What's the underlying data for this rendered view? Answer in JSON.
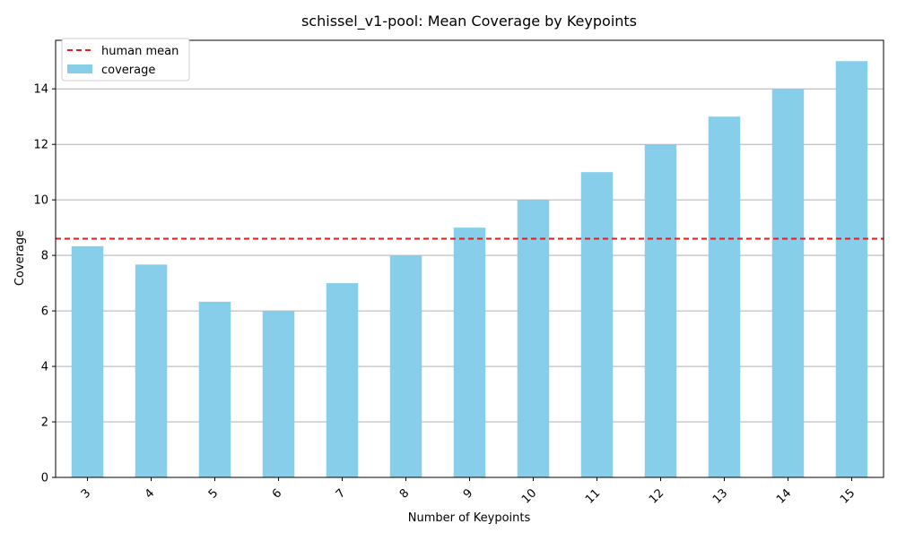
{
  "chart_data": {
    "type": "bar",
    "title": "schissel_v1-pool: Mean Coverage by Keypoints",
    "xlabel": "Number of Keypoints",
    "ylabel": "Coverage",
    "categories": [
      "3",
      "4",
      "5",
      "6",
      "7",
      "8",
      "9",
      "10",
      "11",
      "12",
      "13",
      "14",
      "15"
    ],
    "series": [
      {
        "name": "coverage",
        "values": [
          8.33,
          7.67,
          6.33,
          6.0,
          7.0,
          8.0,
          9.0,
          10.0,
          11.0,
          12.0,
          13.0,
          14.0,
          15.0
        ]
      }
    ],
    "reference_line": {
      "name": "human mean",
      "value": 8.6
    },
    "ylim": [
      0,
      15.75
    ],
    "yticks": [
      0,
      2,
      4,
      6,
      8,
      10,
      12,
      14
    ],
    "grid": "y",
    "legend_position": "upper-left",
    "colors": {
      "bar": "#87ceeb",
      "reference_line": "#e41a1c"
    }
  }
}
